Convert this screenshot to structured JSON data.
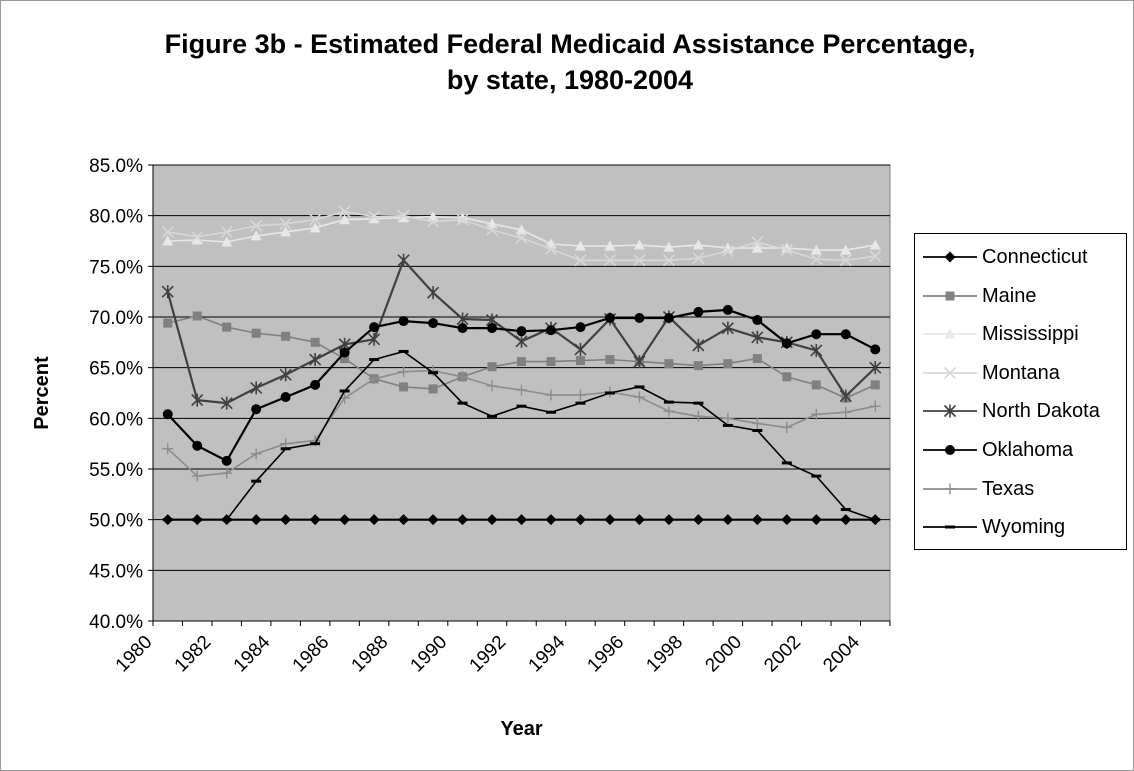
{
  "chart_data": {
    "type": "line",
    "title": "Figure 3b - Estimated Federal Medicaid Assistance Percentage,",
    "title_line2": "by state, 1980-2004",
    "xlabel": "Year",
    "ylabel": "Percent",
    "ylim": [
      40,
      85
    ],
    "y_ticks": [
      "40.0%",
      "45.0%",
      "50.0%",
      "55.0%",
      "60.0%",
      "65.0%",
      "70.0%",
      "75.0%",
      "80.0%",
      "85.0%"
    ],
    "x_ticks": [
      "1980",
      "1982",
      "1984",
      "1986",
      "1988",
      "1990",
      "1992",
      "1994",
      "1996",
      "1998",
      "2000",
      "2002",
      "2004"
    ],
    "x": [
      1980,
      1981,
      1982,
      1983,
      1984,
      1985,
      1986,
      1987,
      1988,
      1989,
      1990,
      1991,
      1992,
      1993,
      1994,
      1995,
      1996,
      1997,
      1998,
      1999,
      2000,
      2001,
      2002,
      2003,
      2004
    ],
    "grid": "horizontal",
    "legend_position": "right",
    "plot_background": "#c0c0c0",
    "series": [
      {
        "name": "Connecticut",
        "color": "#000000",
        "marker": "diamond",
        "values": [
          50,
          50,
          50,
          50,
          50,
          50,
          50,
          50,
          50,
          50,
          50,
          50,
          50,
          50,
          50,
          50,
          50,
          50,
          50,
          50,
          50,
          50,
          50,
          50,
          50
        ]
      },
      {
        "name": "Maine",
        "color": "#808080",
        "marker": "square",
        "values": [
          69.4,
          70.1,
          69.0,
          68.4,
          68.1,
          67.5,
          65.9,
          63.9,
          63.1,
          62.9,
          64.1,
          65.1,
          65.6,
          65.6,
          65.7,
          65.8,
          65.6,
          65.4,
          65.2,
          65.4,
          65.9,
          64.1,
          63.3,
          62.0,
          63.3
        ]
      },
      {
        "name": "Mississippi",
        "color": "#e8e8e8",
        "marker": "triangle",
        "values": [
          77.5,
          77.6,
          77.4,
          78.0,
          78.4,
          78.8,
          79.6,
          79.7,
          79.8,
          79.9,
          79.8,
          79.2,
          78.6,
          77.2,
          77.0,
          77.0,
          77.1,
          76.9,
          77.1,
          76.8,
          76.8,
          76.8,
          76.6,
          76.6,
          77.1
        ]
      },
      {
        "name": "Montana",
        "color": "#d8d8d8",
        "marker": "x",
        "values": [
          78.4,
          77.9,
          78.4,
          79.0,
          79.2,
          79.6,
          80.4,
          79.9,
          80.0,
          79.4,
          79.6,
          78.6,
          77.8,
          76.7,
          75.6,
          75.6,
          75.6,
          75.6,
          75.8,
          76.5,
          77.4,
          76.6,
          75.7,
          75.6,
          76.0
        ]
      },
      {
        "name": "North Dakota",
        "color": "#404040",
        "marker": "star",
        "values": [
          72.5,
          61.8,
          61.5,
          63.0,
          64.3,
          65.8,
          67.3,
          67.8,
          75.6,
          72.4,
          69.8,
          69.7,
          67.6,
          68.9,
          66.8,
          69.8,
          65.6,
          70.0,
          67.2,
          68.9,
          68.0,
          67.5,
          66.7,
          62.2,
          65.0
        ]
      },
      {
        "name": "Oklahoma",
        "color": "#000000",
        "marker": "circle",
        "values": [
          60.4,
          57.3,
          55.8,
          60.9,
          62.1,
          63.3,
          66.5,
          69.0,
          69.6,
          69.4,
          68.9,
          68.9,
          68.6,
          68.7,
          69.0,
          69.9,
          69.9,
          69.9,
          70.5,
          70.7,
          69.7,
          67.4,
          68.3,
          68.3,
          66.8
        ]
      },
      {
        "name": "Texas",
        "color": "#8c8c8c",
        "marker": "plus",
        "values": [
          57.0,
          54.3,
          54.6,
          56.5,
          57.5,
          57.8,
          62.0,
          63.9,
          64.6,
          64.7,
          64.1,
          63.2,
          62.8,
          62.3,
          62.3,
          62.6,
          62.1,
          60.7,
          60.2,
          60.0,
          59.5,
          59.1,
          60.4,
          60.6,
          61.2
        ]
      },
      {
        "name": "Wyoming",
        "color": "#000000",
        "marker": "dash",
        "values": [
          50.0,
          50.0,
          50.0,
          53.8,
          57.0,
          57.5,
          62.7,
          65.8,
          66.6,
          64.5,
          61.5,
          60.2,
          61.2,
          60.6,
          61.5,
          62.5,
          63.1,
          61.6,
          61.5,
          59.3,
          58.8,
          55.6,
          54.3,
          51.0,
          50.0
        ]
      }
    ]
  }
}
